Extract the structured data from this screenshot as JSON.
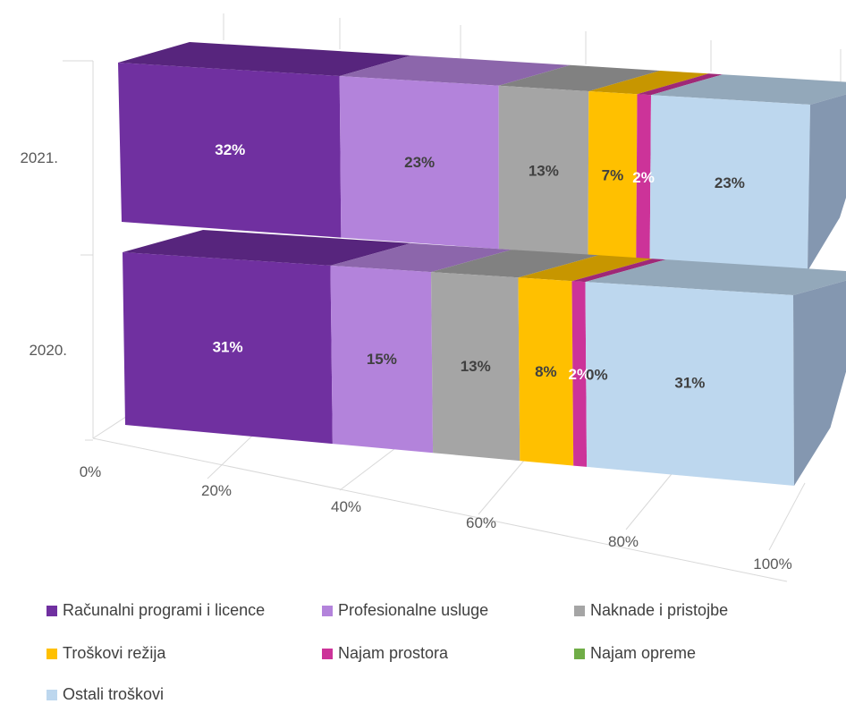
{
  "chart_data": {
    "type": "bar",
    "orientation": "horizontal",
    "stacked": "percent",
    "three_d": true,
    "categories": [
      "2021.",
      "2020."
    ],
    "xlim": [
      0,
      100
    ],
    "x_ticks": [
      "0%",
      "20%",
      "40%",
      "60%",
      "80%",
      "100%"
    ],
    "legend_position": "bottom",
    "series": [
      {
        "name": "Računalni programi i licence",
        "color": "#7030A0",
        "values": [
          32,
          31
        ],
        "labels": [
          "32%",
          "31%"
        ],
        "label_color": "#ffffff"
      },
      {
        "name": "Profesionalne usluge",
        "color": "#B383DB",
        "values": [
          23,
          15
        ],
        "labels": [
          "23%",
          "15%"
        ],
        "label_color": "#404040"
      },
      {
        "name": "Naknade i pristojbe",
        "color": "#A5A5A5",
        "values": [
          13,
          13
        ],
        "labels": [
          "13%",
          "13%"
        ],
        "label_color": "#404040"
      },
      {
        "name": "Troškovi režija",
        "color": "#FFC000",
        "values": [
          7,
          8
        ],
        "labels": [
          "7%",
          "8%"
        ],
        "label_color": "#404040"
      },
      {
        "name": "Najam prostora",
        "color": "#CC3399",
        "values": [
          2,
          2
        ],
        "labels": [
          "2%",
          "2%"
        ],
        "label_color": "#ffffff"
      },
      {
        "name": "Najam opreme",
        "color": "#70AD47",
        "values": [
          0,
          0
        ],
        "labels": [
          "",
          "0%"
        ],
        "label_color": "#404040"
      },
      {
        "name": "Ostali troškovi",
        "color": "#BDD7EE",
        "values": [
          23,
          31
        ],
        "labels": [
          "23%",
          "31%"
        ],
        "label_color": "#404040"
      }
    ]
  }
}
